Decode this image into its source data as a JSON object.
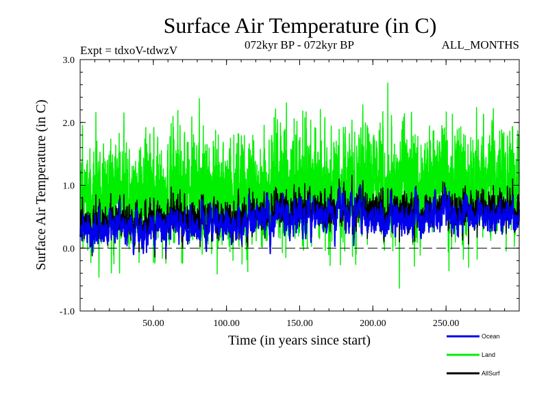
{
  "chart_data": {
    "type": "line",
    "title": "Surface Air Temperature (in C)",
    "subtitle_left": "Expt = tdxoV-tdwzV",
    "subtitle_center": "072kyr BP - 072kyr BP",
    "subtitle_right": "ALL_MONTHS",
    "xlabel": "Time (in years since start)",
    "ylabel": "Surface Air Temperature (in C)",
    "xlim": [
      0,
      300
    ],
    "ylim": [
      -1.0,
      3.0
    ],
    "x_ticks": [
      50,
      100,
      150,
      200,
      250
    ],
    "x_tick_labels": [
      "50.00",
      "100.00",
      "150.00",
      "200.00",
      "250.00"
    ],
    "y_ticks": [
      -1.0,
      0.0,
      1.0,
      2.0,
      3.0
    ],
    "y_tick_labels": [
      "-1.0",
      "0.0",
      "1.0",
      "2.0",
      "3.0"
    ],
    "zero_line": "dashed",
    "grid": false,
    "legend_position": "bottom-right",
    "series": [
      {
        "name": "Land",
        "color": "#00ee00",
        "x": [
          0,
          10,
          20,
          30,
          40,
          50,
          60,
          70,
          80,
          90,
          100,
          110,
          120,
          130,
          140,
          150,
          160,
          170,
          180,
          190,
          200,
          210,
          220,
          230,
          240,
          250,
          260,
          270,
          280,
          290,
          300
        ],
        "values": [
          0.7,
          0.75,
          0.8,
          0.8,
          0.8,
          0.85,
          0.85,
          0.85,
          0.9,
          0.9,
          0.9,
          0.9,
          0.95,
          1.0,
          1.05,
          1.05,
          1.05,
          1.05,
          1.1,
          1.1,
          1.05,
          1.05,
          1.1,
          1.05,
          1.05,
          1.05,
          1.05,
          1.05,
          1.05,
          1.1,
          1.1
        ]
      },
      {
        "name": "Ocean",
        "color": "#0000ee",
        "x": [
          0,
          10,
          20,
          30,
          40,
          50,
          60,
          70,
          80,
          90,
          100,
          110,
          120,
          130,
          140,
          150,
          160,
          170,
          180,
          190,
          200,
          210,
          220,
          230,
          240,
          250,
          260,
          270,
          280,
          290,
          300
        ],
        "values": [
          0.25,
          0.3,
          0.3,
          0.3,
          0.3,
          0.3,
          0.35,
          0.35,
          0.35,
          0.35,
          0.35,
          0.35,
          0.4,
          0.45,
          0.5,
          0.5,
          0.5,
          0.5,
          0.5,
          0.55,
          0.45,
          0.45,
          0.5,
          0.5,
          0.5,
          0.5,
          0.5,
          0.5,
          0.45,
          0.5,
          0.5
        ]
      },
      {
        "name": "AllSurf",
        "color": "#000000",
        "x": [
          0,
          10,
          20,
          30,
          40,
          50,
          60,
          70,
          80,
          90,
          100,
          110,
          120,
          130,
          140,
          150,
          160,
          170,
          180,
          190,
          200,
          210,
          220,
          230,
          240,
          250,
          260,
          270,
          280,
          290,
          300
        ],
        "values": [
          0.35,
          0.38,
          0.4,
          0.4,
          0.4,
          0.42,
          0.44,
          0.45,
          0.45,
          0.46,
          0.46,
          0.47,
          0.5,
          0.55,
          0.6,
          0.62,
          0.6,
          0.6,
          0.62,
          0.65,
          0.58,
          0.58,
          0.62,
          0.6,
          0.6,
          0.6,
          0.6,
          0.6,
          0.58,
          0.62,
          0.62
        ]
      }
    ],
    "draw_order": [
      "Land",
      "AllSurf",
      "Ocean"
    ],
    "legend_order": [
      "Ocean",
      "Land",
      "AllSurf"
    ]
  }
}
